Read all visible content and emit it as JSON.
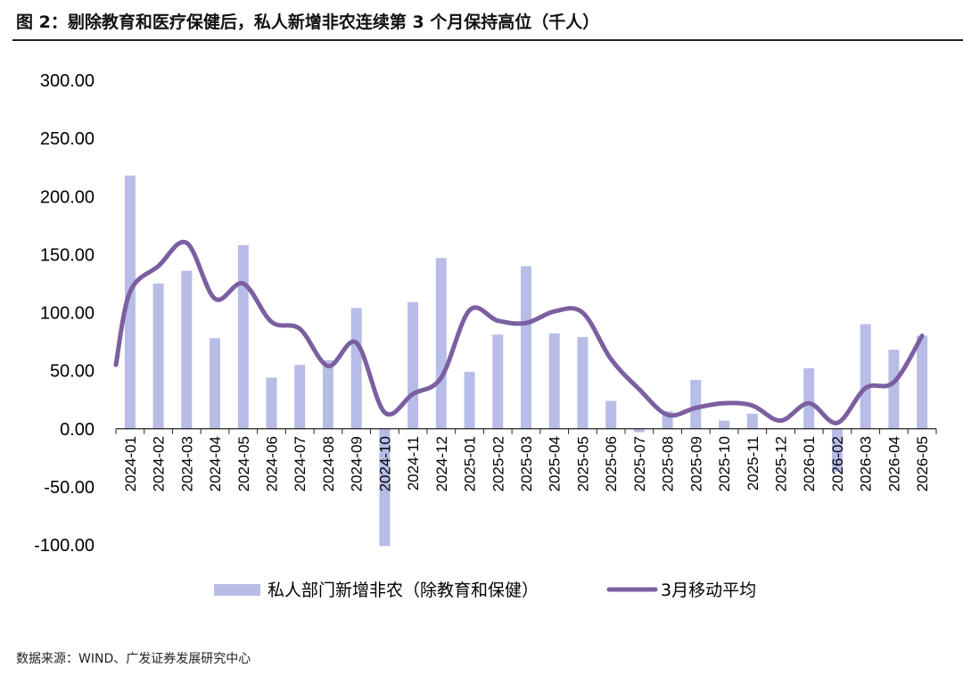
{
  "figure": {
    "title": "图 2：剔除教育和医疗保健后，私人新增非农连续第 3 个月保持高位（千人）",
    "source": "数据来源：WIND、广发证券发展研究中心"
  },
  "colors": {
    "bar": "#b7bde6",
    "line": "#7b5fa0",
    "axis": "#222222"
  },
  "chart_data": {
    "type": "bar",
    "categories": [
      "2024-01",
      "2024-02",
      "2024-03",
      "2024-04",
      "2024-05",
      "2024-06",
      "2024-07",
      "2024-08",
      "2024-09",
      "2024-10",
      "2024-11",
      "2024-12",
      "2025-01",
      "2025-02",
      "2025-03",
      "2025-04",
      "2025-05",
      "2025-06",
      "2025-07",
      "2025-08",
      "2025-09",
      "2025-10",
      "2025-11",
      "2025-12",
      "2026-01",
      "2026-02",
      "2026-03",
      "2026-04",
      "2026-05"
    ],
    "series": [
      {
        "name": "私人部门新增非农（除教育和保健）",
        "type": "bar",
        "values": [
          218,
          125,
          136,
          78,
          158,
          44,
          55,
          59,
          104,
          -101,
          109,
          147,
          49,
          81,
          140,
          82,
          79,
          24,
          -3,
          15,
          42,
          7,
          13,
          0,
          52,
          -37,
          90,
          68,
          80
        ]
      },
      {
        "name": "3月移动平均",
        "type": "line",
        "values": [
          118,
          140,
          160,
          112,
          125,
          92,
          86,
          54,
          74,
          14,
          30,
          44,
          102,
          93,
          91,
          101,
          100,
          60,
          34,
          12,
          18,
          22,
          20,
          7,
          22,
          5,
          35,
          40,
          80
        ]
      }
    ],
    "ylim": [
      -100,
      300
    ],
    "yticks": [
      "-100.00",
      "-50.00",
      "0.00",
      "50.00",
      "100.00",
      "150.00",
      "200.00",
      "250.00",
      "300.00"
    ],
    "line_start_value": 55,
    "grid": false,
    "legend": "bottom-center"
  }
}
